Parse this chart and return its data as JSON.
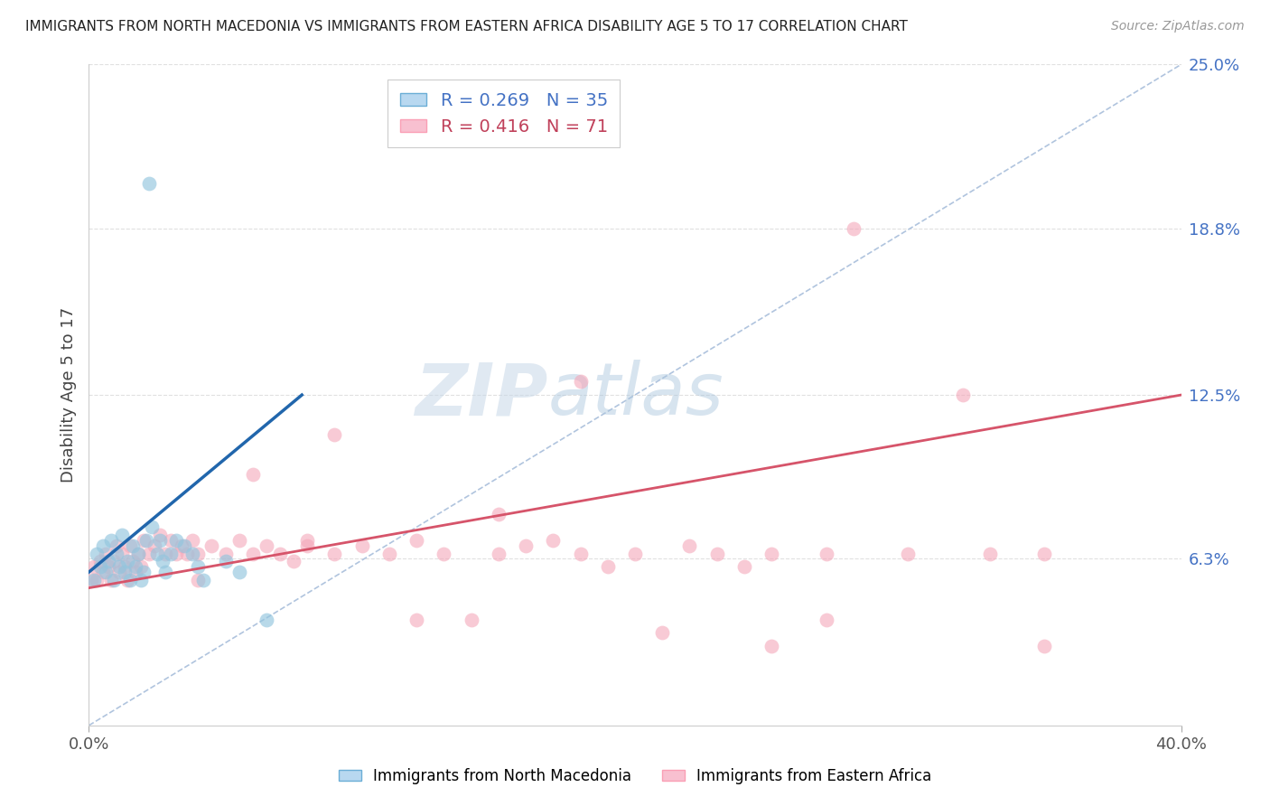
{
  "title": "IMMIGRANTS FROM NORTH MACEDONIA VS IMMIGRANTS FROM EASTERN AFRICA DISABILITY AGE 5 TO 17 CORRELATION CHART",
  "source": "Source: ZipAtlas.com",
  "ylabel": "Disability Age 5 to 17",
  "xlim": [
    0.0,
    0.4
  ],
  "ylim": [
    0.0,
    0.25
  ],
  "yticks": [
    0.063,
    0.125,
    0.188,
    0.25
  ],
  "ytick_labels": [
    "6.3%",
    "12.5%",
    "18.8%",
    "25.0%"
  ],
  "xticks": [
    0.0,
    0.4
  ],
  "xtick_labels": [
    "0.0%",
    "40.0%"
  ],
  "watermark_zip": "ZIP",
  "watermark_atlas": "atlas",
  "background_color": "#ffffff",
  "grid_color": "#e0e0e0",
  "nm_color": "#92c5de",
  "ea_color": "#f4a7b9",
  "nm_trend_color": "#2166ac",
  "ea_trend_color": "#d6546a",
  "diagonal_color": "#b0c4de",
  "ytick_color": "#4472c4",
  "nm_scatter_x": [
    0.002,
    0.003,
    0.004,
    0.005,
    0.006,
    0.007,
    0.008,
    0.009,
    0.01,
    0.011,
    0.012,
    0.013,
    0.014,
    0.015,
    0.016,
    0.017,
    0.018,
    0.019,
    0.02,
    0.021,
    0.023,
    0.025,
    0.026,
    0.027,
    0.028,
    0.03,
    0.032,
    0.035,
    0.038,
    0.04,
    0.042,
    0.05,
    0.055,
    0.065,
    0.022
  ],
  "nm_scatter_y": [
    0.055,
    0.065,
    0.06,
    0.068,
    0.058,
    0.062,
    0.07,
    0.055,
    0.065,
    0.06,
    0.072,
    0.058,
    0.062,
    0.055,
    0.068,
    0.06,
    0.065,
    0.055,
    0.058,
    0.07,
    0.075,
    0.065,
    0.07,
    0.062,
    0.058,
    0.065,
    0.07,
    0.068,
    0.065,
    0.06,
    0.055,
    0.062,
    0.058,
    0.04,
    0.205
  ],
  "ea_scatter_x": [
    0.001,
    0.002,
    0.003,
    0.004,
    0.005,
    0.006,
    0.007,
    0.008,
    0.009,
    0.01,
    0.011,
    0.012,
    0.013,
    0.014,
    0.015,
    0.016,
    0.017,
    0.018,
    0.019,
    0.02,
    0.022,
    0.024,
    0.026,
    0.028,
    0.03,
    0.032,
    0.034,
    0.036,
    0.038,
    0.04,
    0.045,
    0.05,
    0.055,
    0.06,
    0.065,
    0.07,
    0.075,
    0.08,
    0.09,
    0.1,
    0.11,
    0.12,
    0.13,
    0.14,
    0.15,
    0.16,
    0.17,
    0.18,
    0.19,
    0.2,
    0.21,
    0.22,
    0.23,
    0.24,
    0.25,
    0.27,
    0.28,
    0.3,
    0.32,
    0.33,
    0.35,
    0.27,
    0.09,
    0.18,
    0.06,
    0.04,
    0.08,
    0.12,
    0.35,
    0.25,
    0.15
  ],
  "ea_scatter_y": [
    0.055,
    0.06,
    0.055,
    0.062,
    0.058,
    0.065,
    0.06,
    0.055,
    0.062,
    0.068,
    0.058,
    0.065,
    0.06,
    0.055,
    0.068,
    0.062,
    0.058,
    0.065,
    0.06,
    0.07,
    0.065,
    0.068,
    0.072,
    0.065,
    0.07,
    0.065,
    0.068,
    0.065,
    0.07,
    0.065,
    0.068,
    0.065,
    0.07,
    0.065,
    0.068,
    0.065,
    0.062,
    0.07,
    0.065,
    0.068,
    0.065,
    0.07,
    0.065,
    0.04,
    0.065,
    0.068,
    0.07,
    0.065,
    0.06,
    0.065,
    0.035,
    0.068,
    0.065,
    0.06,
    0.065,
    0.065,
    0.188,
    0.065,
    0.125,
    0.065,
    0.065,
    0.04,
    0.11,
    0.13,
    0.095,
    0.055,
    0.068,
    0.04,
    0.03,
    0.03,
    0.08
  ],
  "nm_trend_x": [
    0.0,
    0.078
  ],
  "nm_trend_y": [
    0.058,
    0.125
  ],
  "ea_trend_x": [
    0.0,
    0.4
  ],
  "ea_trend_y": [
    0.052,
    0.125
  ],
  "diagonal_trend_x": [
    0.0,
    0.4
  ],
  "diagonal_trend_y": [
    0.0,
    0.25
  ]
}
